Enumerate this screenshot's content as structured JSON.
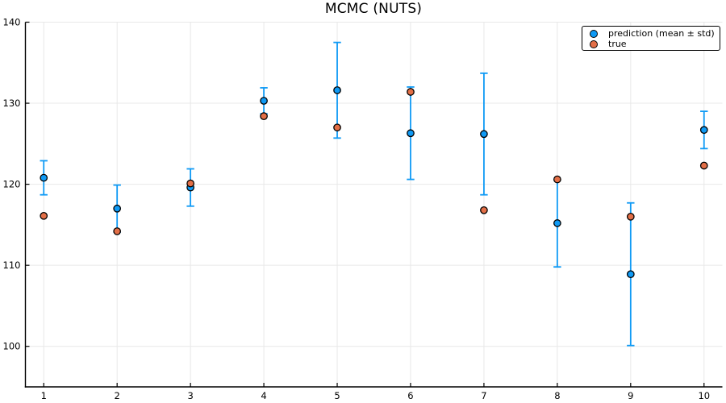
{
  "title": "MCMC (NUTS)",
  "chart_data": {
    "type": "scatter",
    "title": "MCMC (NUTS)",
    "x": [
      1,
      2,
      3,
      4,
      5,
      6,
      7,
      8,
      9,
      10
    ],
    "series": [
      {
        "name": "prediction (mean ± std)",
        "marker": "circle",
        "color": "#0f9af5",
        "values": [
          120.8,
          117.0,
          119.6,
          130.3,
          131.6,
          126.3,
          126.2,
          115.2,
          108.9,
          126.7
        ],
        "std": [
          2.1,
          2.9,
          2.3,
          1.6,
          5.9,
          5.7,
          7.5,
          5.4,
          8.8,
          2.3
        ]
      },
      {
        "name": "true",
        "marker": "circle",
        "color": "#e36f47",
        "values": [
          116.1,
          114.2,
          120.1,
          128.4,
          127.0,
          131.4,
          116.8,
          120.6,
          116.0,
          122.3
        ]
      }
    ],
    "xlabel": "",
    "ylabel": "",
    "xlim": [
      0.75,
      10.25
    ],
    "ylim": [
      95,
      140
    ],
    "xticks": [
      1,
      2,
      3,
      4,
      5,
      6,
      7,
      8,
      9,
      10
    ],
    "yticks": [
      100,
      110,
      120,
      130,
      140
    ],
    "xtick_labels": [
      "1",
      "2",
      "3",
      "4",
      "5",
      "6",
      "7",
      "8",
      "9",
      "10"
    ],
    "ytick_labels": [
      "100",
      "110",
      "120",
      "130",
      "140"
    ],
    "grid": true,
    "legend_position": "top-right",
    "style": {
      "grid_color": "#e8e8e8",
      "axis_color": "#000000",
      "tick_label_color": "#000000",
      "background": "#ffffff"
    }
  }
}
